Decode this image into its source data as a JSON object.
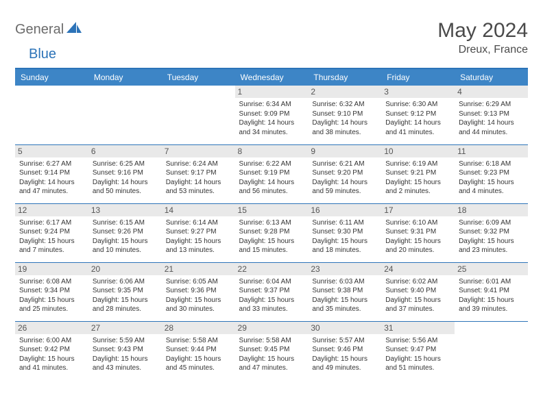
{
  "brand": {
    "part1": "General",
    "part2": "Blue"
  },
  "title": "May 2024",
  "location": "Dreux, France",
  "header_bg": "#3d85c6",
  "accent": "#2c73b8",
  "daynum_bg": "#e9e9e9",
  "weekdays": [
    "Sunday",
    "Monday",
    "Tuesday",
    "Wednesday",
    "Thursday",
    "Friday",
    "Saturday"
  ],
  "weeks": [
    [
      null,
      null,
      null,
      {
        "n": "1",
        "sr": "6:34 AM",
        "ss": "9:09 PM",
        "dl": "14 hours and 34 minutes."
      },
      {
        "n": "2",
        "sr": "6:32 AM",
        "ss": "9:10 PM",
        "dl": "14 hours and 38 minutes."
      },
      {
        "n": "3",
        "sr": "6:30 AM",
        "ss": "9:12 PM",
        "dl": "14 hours and 41 minutes."
      },
      {
        "n": "4",
        "sr": "6:29 AM",
        "ss": "9:13 PM",
        "dl": "14 hours and 44 minutes."
      }
    ],
    [
      {
        "n": "5",
        "sr": "6:27 AM",
        "ss": "9:14 PM",
        "dl": "14 hours and 47 minutes."
      },
      {
        "n": "6",
        "sr": "6:25 AM",
        "ss": "9:16 PM",
        "dl": "14 hours and 50 minutes."
      },
      {
        "n": "7",
        "sr": "6:24 AM",
        "ss": "9:17 PM",
        "dl": "14 hours and 53 minutes."
      },
      {
        "n": "8",
        "sr": "6:22 AM",
        "ss": "9:19 PM",
        "dl": "14 hours and 56 minutes."
      },
      {
        "n": "9",
        "sr": "6:21 AM",
        "ss": "9:20 PM",
        "dl": "14 hours and 59 minutes."
      },
      {
        "n": "10",
        "sr": "6:19 AM",
        "ss": "9:21 PM",
        "dl": "15 hours and 2 minutes."
      },
      {
        "n": "11",
        "sr": "6:18 AM",
        "ss": "9:23 PM",
        "dl": "15 hours and 4 minutes."
      }
    ],
    [
      {
        "n": "12",
        "sr": "6:17 AM",
        "ss": "9:24 PM",
        "dl": "15 hours and 7 minutes."
      },
      {
        "n": "13",
        "sr": "6:15 AM",
        "ss": "9:26 PM",
        "dl": "15 hours and 10 minutes."
      },
      {
        "n": "14",
        "sr": "6:14 AM",
        "ss": "9:27 PM",
        "dl": "15 hours and 13 minutes."
      },
      {
        "n": "15",
        "sr": "6:13 AM",
        "ss": "9:28 PM",
        "dl": "15 hours and 15 minutes."
      },
      {
        "n": "16",
        "sr": "6:11 AM",
        "ss": "9:30 PM",
        "dl": "15 hours and 18 minutes."
      },
      {
        "n": "17",
        "sr": "6:10 AM",
        "ss": "9:31 PM",
        "dl": "15 hours and 20 minutes."
      },
      {
        "n": "18",
        "sr": "6:09 AM",
        "ss": "9:32 PM",
        "dl": "15 hours and 23 minutes."
      }
    ],
    [
      {
        "n": "19",
        "sr": "6:08 AM",
        "ss": "9:34 PM",
        "dl": "15 hours and 25 minutes."
      },
      {
        "n": "20",
        "sr": "6:06 AM",
        "ss": "9:35 PM",
        "dl": "15 hours and 28 minutes."
      },
      {
        "n": "21",
        "sr": "6:05 AM",
        "ss": "9:36 PM",
        "dl": "15 hours and 30 minutes."
      },
      {
        "n": "22",
        "sr": "6:04 AM",
        "ss": "9:37 PM",
        "dl": "15 hours and 33 minutes."
      },
      {
        "n": "23",
        "sr": "6:03 AM",
        "ss": "9:38 PM",
        "dl": "15 hours and 35 minutes."
      },
      {
        "n": "24",
        "sr": "6:02 AM",
        "ss": "9:40 PM",
        "dl": "15 hours and 37 minutes."
      },
      {
        "n": "25",
        "sr": "6:01 AM",
        "ss": "9:41 PM",
        "dl": "15 hours and 39 minutes."
      }
    ],
    [
      {
        "n": "26",
        "sr": "6:00 AM",
        "ss": "9:42 PM",
        "dl": "15 hours and 41 minutes."
      },
      {
        "n": "27",
        "sr": "5:59 AM",
        "ss": "9:43 PM",
        "dl": "15 hours and 43 minutes."
      },
      {
        "n": "28",
        "sr": "5:58 AM",
        "ss": "9:44 PM",
        "dl": "15 hours and 45 minutes."
      },
      {
        "n": "29",
        "sr": "5:58 AM",
        "ss": "9:45 PM",
        "dl": "15 hours and 47 minutes."
      },
      {
        "n": "30",
        "sr": "5:57 AM",
        "ss": "9:46 PM",
        "dl": "15 hours and 49 minutes."
      },
      {
        "n": "31",
        "sr": "5:56 AM",
        "ss": "9:47 PM",
        "dl": "15 hours and 51 minutes."
      },
      null
    ]
  ],
  "labels": {
    "sunrise": "Sunrise:",
    "sunset": "Sunset:",
    "daylight": "Daylight:"
  }
}
